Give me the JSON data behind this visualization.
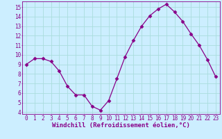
{
  "x": [
    0,
    1,
    2,
    3,
    4,
    5,
    6,
    7,
    8,
    9,
    10,
    11,
    12,
    13,
    14,
    15,
    16,
    17,
    18,
    19,
    20,
    21,
    22,
    23
  ],
  "y": [
    9.0,
    9.6,
    9.6,
    9.3,
    8.3,
    6.7,
    5.8,
    5.8,
    4.6,
    4.2,
    5.2,
    7.5,
    9.8,
    11.5,
    13.0,
    14.1,
    14.8,
    15.3,
    14.5,
    13.5,
    12.2,
    11.0,
    9.5,
    7.7
  ],
  "line_color": "#880088",
  "marker": "D",
  "marker_size": 2.5,
  "bg_color": "#cceeff",
  "grid_color": "#aadddd",
  "xlabel": "Windchill (Refroidissement éolien,°C)",
  "ylim": [
    3.8,
    15.6
  ],
  "xlim": [
    -0.5,
    23.5
  ],
  "yticks": [
    4,
    5,
    6,
    7,
    8,
    9,
    10,
    11,
    12,
    13,
    14,
    15
  ],
  "xticks": [
    0,
    1,
    2,
    3,
    4,
    5,
    6,
    7,
    8,
    9,
    10,
    11,
    12,
    13,
    14,
    15,
    16,
    17,
    18,
    19,
    20,
    21,
    22,
    23
  ],
  "tick_color": "#880088",
  "tick_fontsize": 5.5,
  "xlabel_fontsize": 6.5,
  "label_color": "#880088"
}
